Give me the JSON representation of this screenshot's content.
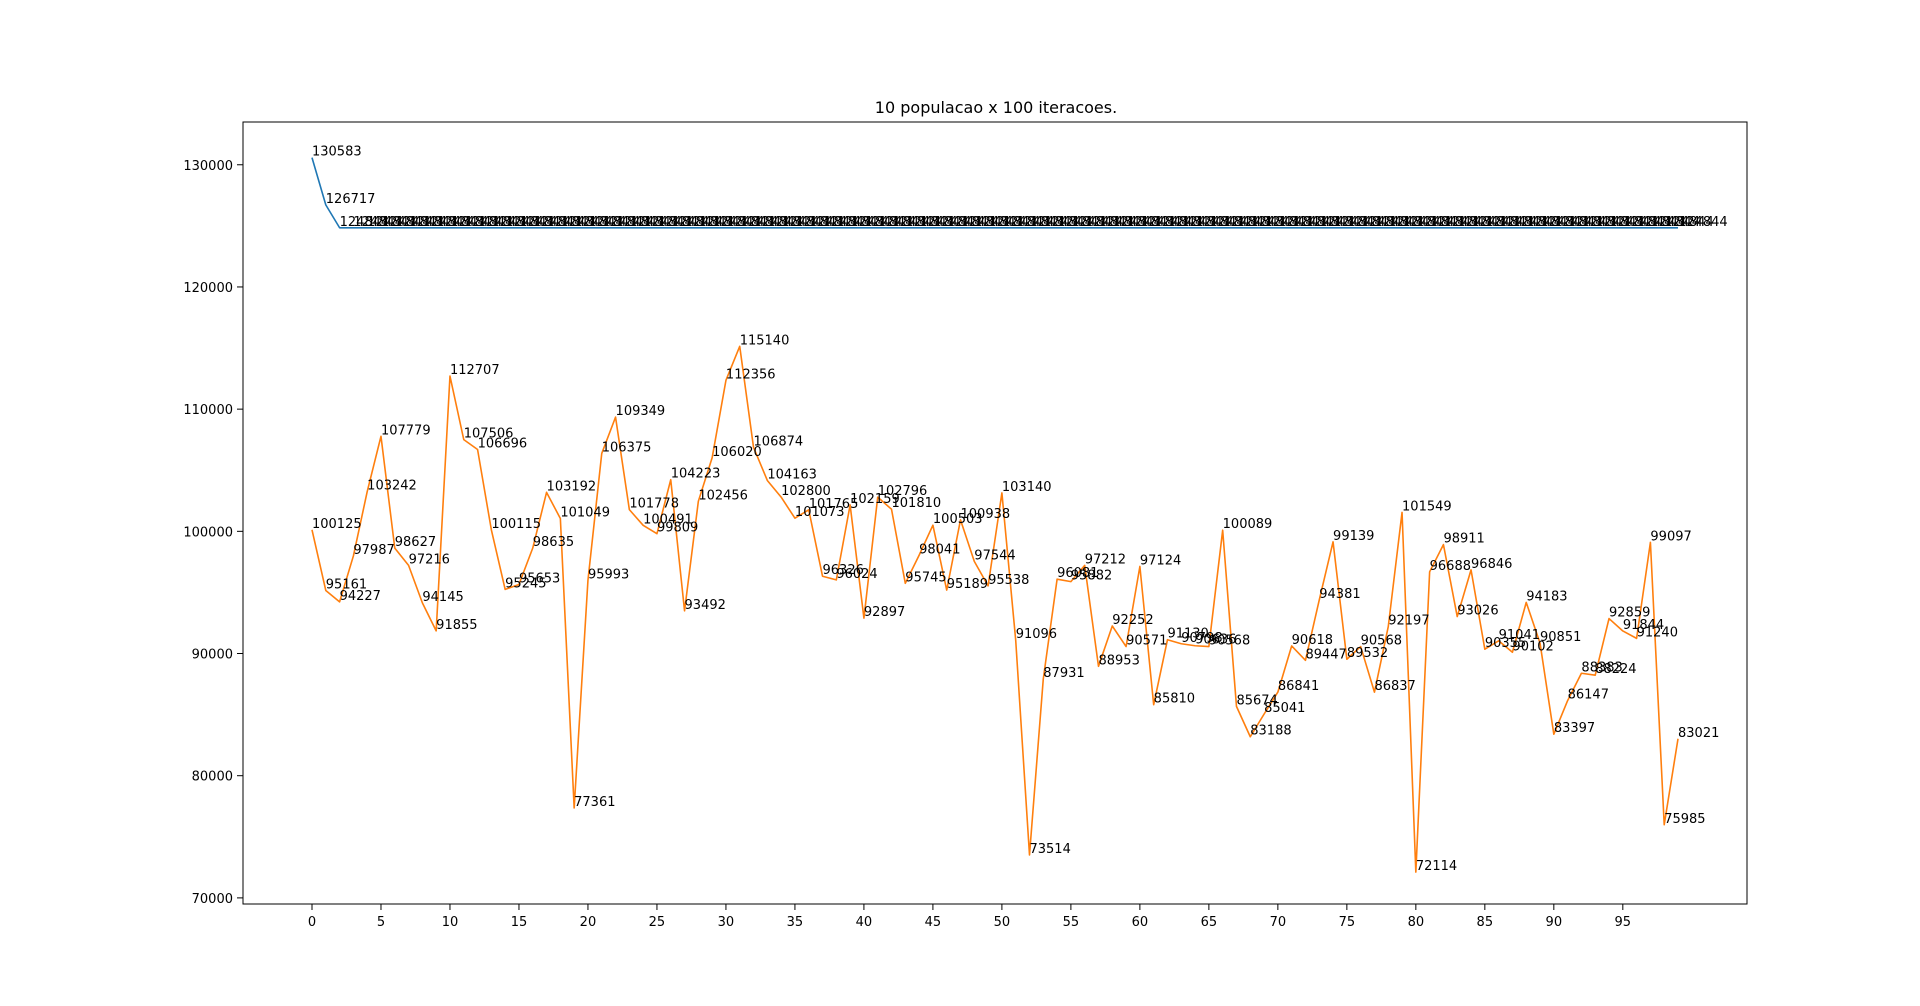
{
  "chart_data": {
    "type": "line",
    "title": "10 populacao x 100 iteracoes.",
    "xlabel": "",
    "ylabel": "",
    "xlim": [
      -5,
      104
    ],
    "ylim": [
      69500,
      133500
    ],
    "x_ticks": [
      0,
      5,
      10,
      15,
      20,
      25,
      30,
      35,
      40,
      45,
      50,
      55,
      60,
      65,
      70,
      75,
      80,
      85,
      90,
      95
    ],
    "y_ticks": [
      70000,
      80000,
      90000,
      100000,
      110000,
      120000,
      130000
    ],
    "series": [
      {
        "color": "#1f77b4",
        "values": [
          130583,
          126717,
          124844,
          124844,
          124844,
          124844,
          124844,
          124844,
          124844,
          124844,
          124844,
          124844,
          124844,
          124844,
          124844,
          124844,
          124844,
          124844,
          124844,
          124844,
          124844,
          124844,
          124844,
          124844,
          124844,
          124844,
          124844,
          124844,
          124844,
          124844,
          124844,
          124844,
          124844,
          124844,
          124844,
          124844,
          124844,
          124844,
          124844,
          124844,
          124844,
          124844,
          124844,
          124844,
          124844,
          124844,
          124844,
          124844,
          124844,
          124844,
          124844,
          124844,
          124844,
          124844,
          124844,
          124844,
          124844,
          124844,
          124844,
          124844,
          124844,
          124844,
          124844,
          124844,
          124844,
          124844,
          124844,
          124844,
          124844,
          124844,
          124844,
          124844,
          124844,
          124844,
          124844,
          124844,
          124844,
          124844,
          124844,
          124844,
          124844,
          124844,
          124844,
          124844,
          124844,
          124844,
          124844,
          124844,
          124844,
          124844,
          124844,
          124844,
          124844,
          124844,
          124844,
          124844,
          124844,
          124844,
          124844,
          124844
        ]
      },
      {
        "color": "#ff7f0e",
        "values": [
          100125,
          95161,
          94227,
          97987,
          103242,
          107779,
          98627,
          97216,
          94145,
          91855,
          112707,
          107506,
          106696,
          100115,
          95245,
          95653,
          98635,
          103192,
          101049,
          77361,
          95993,
          106375,
          109349,
          101778,
          100491,
          99809,
          104223,
          93492,
          102456,
          106020,
          112356,
          115140,
          106874,
          104163,
          102800,
          101073,
          101765,
          96326,
          96024,
          102159,
          92897,
          102796,
          101810,
          95745,
          98041,
          100503,
          95189,
          100938,
          97544,
          95538,
          103140,
          91096,
          73514,
          87931,
          96081,
          95882,
          97212,
          88953,
          92252,
          90571,
          97124,
          85810,
          91130,
          90798,
          90636,
          90568,
          100089,
          85674,
          83188,
          85041,
          86841,
          90618,
          89447,
          94381,
          99139,
          89532,
          90568,
          86837,
          92197,
          101549,
          72114,
          96688,
          98911,
          93026,
          96846,
          90355,
          91041,
          90102,
          94183,
          90851,
          83397,
          86147,
          88383,
          88224,
          92859,
          91844,
          91240,
          99097,
          75985,
          83021
        ]
      }
    ]
  }
}
